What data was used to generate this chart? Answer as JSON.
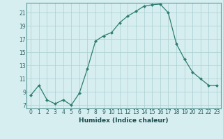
{
  "x": [
    0,
    1,
    2,
    3,
    4,
    5,
    6,
    7,
    8,
    9,
    10,
    11,
    12,
    13,
    14,
    15,
    16,
    17,
    18,
    19,
    20,
    21,
    22,
    23
  ],
  "y": [
    8.5,
    10.0,
    7.8,
    7.2,
    7.8,
    7.0,
    8.8,
    12.5,
    16.7,
    17.5,
    18.0,
    19.5,
    20.5,
    21.2,
    22.0,
    22.2,
    22.3,
    21.0,
    16.3,
    14.0,
    12.0,
    11.0,
    10.0,
    10.0
  ],
  "title": "",
  "xlabel": "Humidex (Indice chaleur)",
  "ylabel": "",
  "xlim": [
    -0.5,
    23.5
  ],
  "ylim": [
    6.5,
    22.5
  ],
  "yticks": [
    7,
    9,
    11,
    13,
    15,
    17,
    19,
    21
  ],
  "xticks": [
    0,
    1,
    2,
    3,
    4,
    5,
    6,
    7,
    8,
    9,
    10,
    11,
    12,
    13,
    14,
    15,
    16,
    17,
    18,
    19,
    20,
    21,
    22,
    23
  ],
  "line_color": "#2d7d6d",
  "marker_color": "#2d7d6d",
  "bg_color": "#d6eef0",
  "grid_color": "#aacfcf",
  "tick_fontsize": 5.5,
  "xlabel_fontsize": 6.5
}
